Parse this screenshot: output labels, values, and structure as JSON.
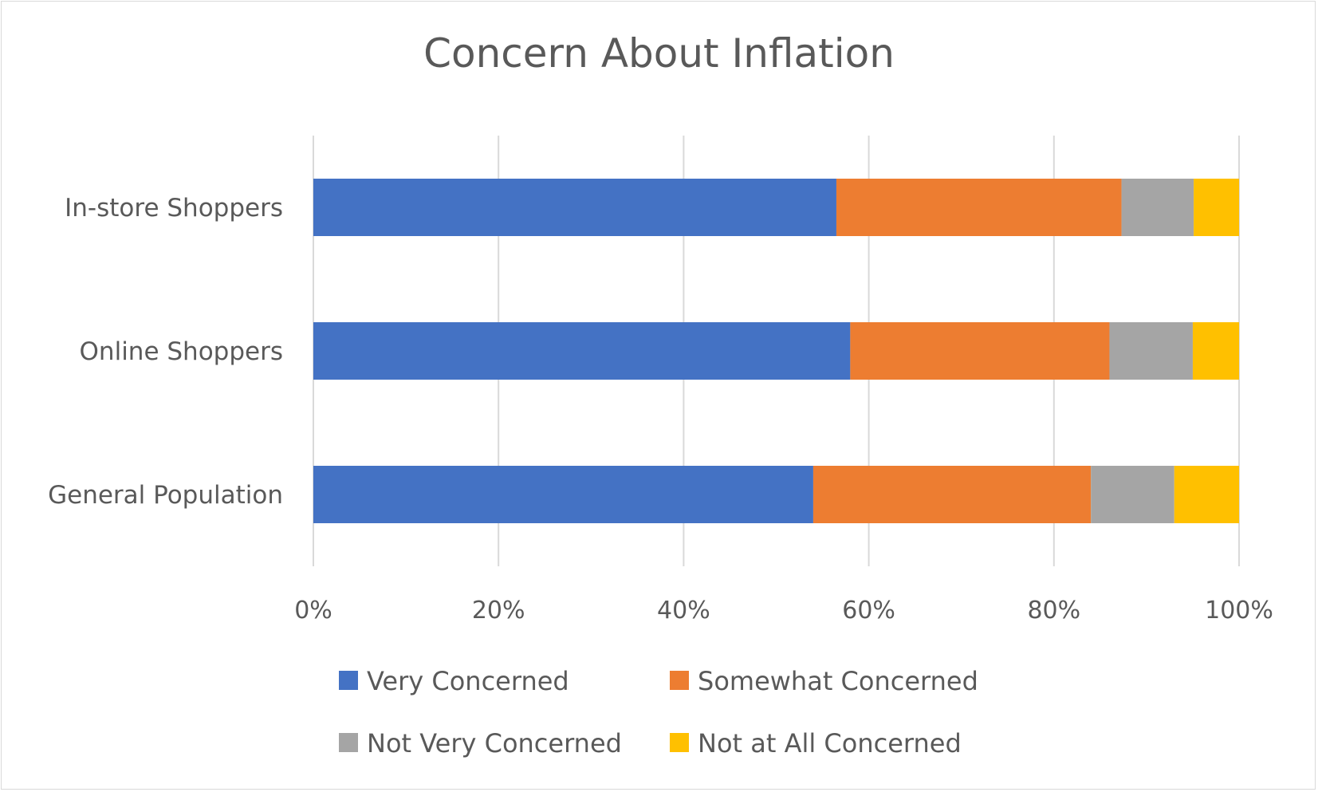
{
  "chart_data": {
    "type": "bar",
    "orientation": "horizontal",
    "stacked": "100%",
    "title": "Concern About Inflation",
    "categories": [
      "In-store Shoppers",
      "Online Shoppers",
      "General Population"
    ],
    "series": [
      {
        "name": "Very Concerned",
        "color": "#4472c4",
        "values": [
          56.5,
          58,
          54
        ]
      },
      {
        "name": "Somewhat Concerned",
        "color": "#ed7d31",
        "values": [
          30.8,
          28,
          30
        ]
      },
      {
        "name": "Not Very Concerned",
        "color": "#a5a5a5",
        "values": [
          7.8,
          9,
          9
        ]
      },
      {
        "name": "Not at All Concerned",
        "color": "#ffc000",
        "values": [
          4.9,
          5,
          7
        ]
      }
    ],
    "xlim": [
      0,
      100
    ],
    "x_ticks": [
      "0%",
      "20%",
      "40%",
      "60%",
      "80%",
      "100%"
    ],
    "grid": true,
    "legend_position": "bottom"
  }
}
